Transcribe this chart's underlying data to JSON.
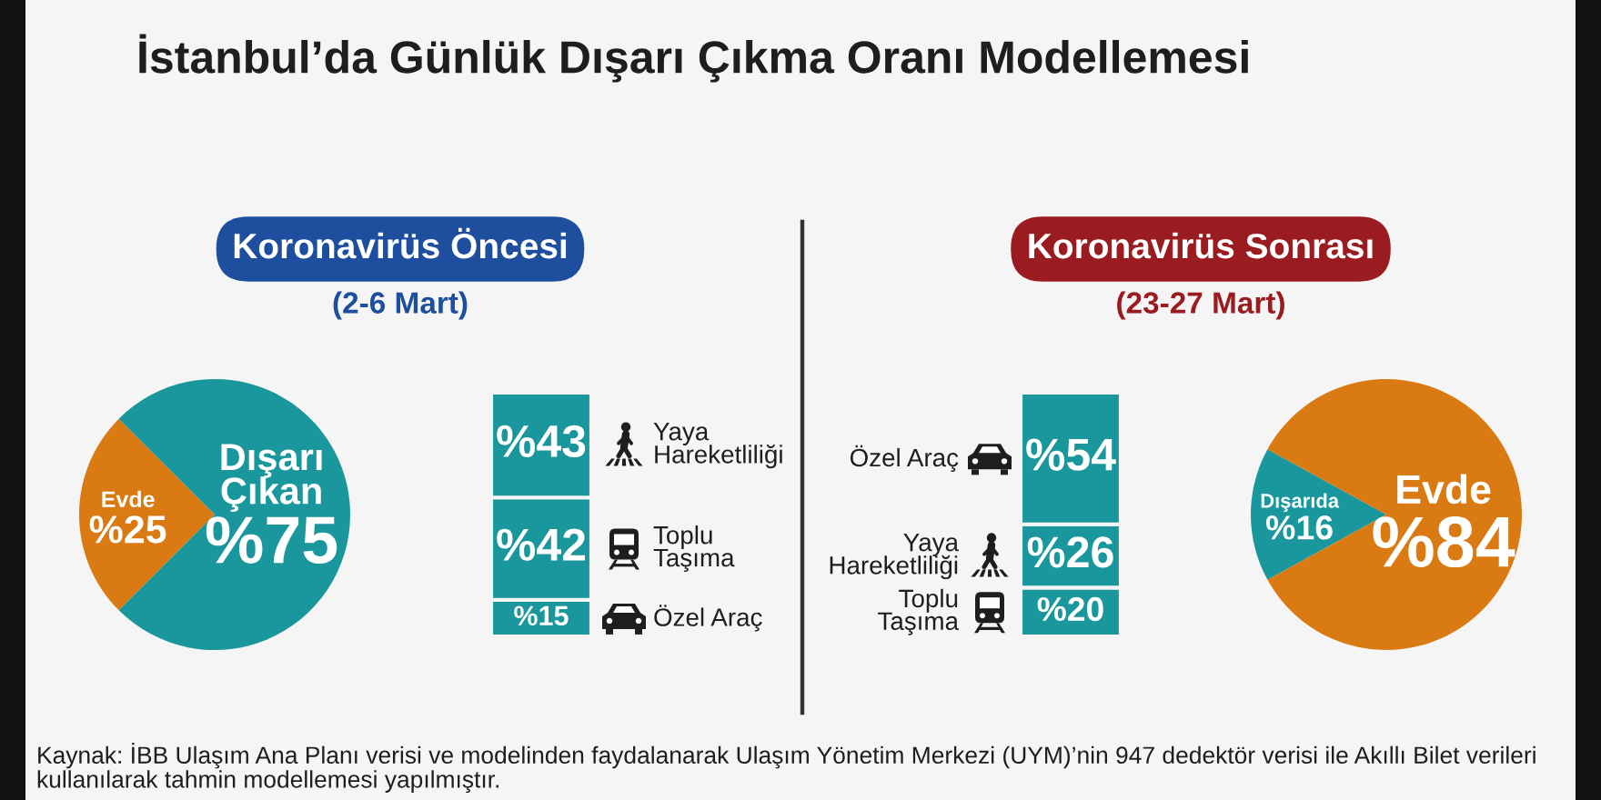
{
  "chart_data": [
    {
      "type": "pie",
      "title": "Koronavirüs Öncesi",
      "subtitle": "(2-6 Mart)",
      "categories": [
        "Evde",
        "Dışarı Çıkan"
      ],
      "values": [
        25,
        75
      ],
      "colors": [
        "#d97b12",
        "#1a979c"
      ],
      "value_labels": [
        "%25",
        "%75"
      ],
      "annotations": [
        "İstanbul’da Günlük Dışarı Çıkma Oranı Modellemesi",
        "Kaynak: İBB Ulaşım Ana Planı verisi ve modelinden faydalanarak Ulaşım Yönetim Merkezi (UYM)’nin 947 dedektör verisi ile Akıllı Bilet verileri kullanılarak tahmin modellemesi yapılmıştır."
      ]
    },
    {
      "type": "bar",
      "stacked": true,
      "categories": [
        null
      ],
      "tick_labels": false,
      "legend": "right",
      "series": [
        {
          "name": "Özel Araç",
          "color": "#1a979c",
          "values": [
            15
          ],
          "value_labels": [
            "%15"
          ]
        },
        {
          "name": "Toplu Taşıma",
          "color": "#1a979c",
          "values": [
            42
          ],
          "value_labels": [
            "%42"
          ]
        },
        {
          "name": "Yaya Hareketliliği",
          "color": "#1a979c",
          "values": [
            43
          ],
          "value_labels": [
            "%43"
          ]
        }
      ]
    },
    {
      "type": "bar",
      "stacked": true,
      "categories": [
        null
      ],
      "tick_labels": false,
      "legend": "left",
      "series": [
        {
          "name": "Toplu Taşıma",
          "color": "#1a979c",
          "values": [
            20
          ],
          "value_labels": [
            "%20"
          ]
        },
        {
          "name": "Yaya Hareketliliği",
          "color": "#1a979c",
          "values": [
            26
          ],
          "value_labels": [
            "%26"
          ]
        },
        {
          "name": "Özel Araç",
          "color": "#1a979c",
          "values": [
            54
          ],
          "value_labels": [
            "%54"
          ]
        }
      ]
    },
    {
      "type": "pie",
      "title": "Koronavirüs Sonrası",
      "subtitle": "(23-27 Mart)",
      "categories": [
        "Dışarıda",
        "Evde"
      ],
      "values": [
        16,
        84
      ],
      "colors": [
        "#1a979c",
        "#d97b12"
      ],
      "value_labels": [
        "%16",
        "%84"
      ]
    }
  ]
}
